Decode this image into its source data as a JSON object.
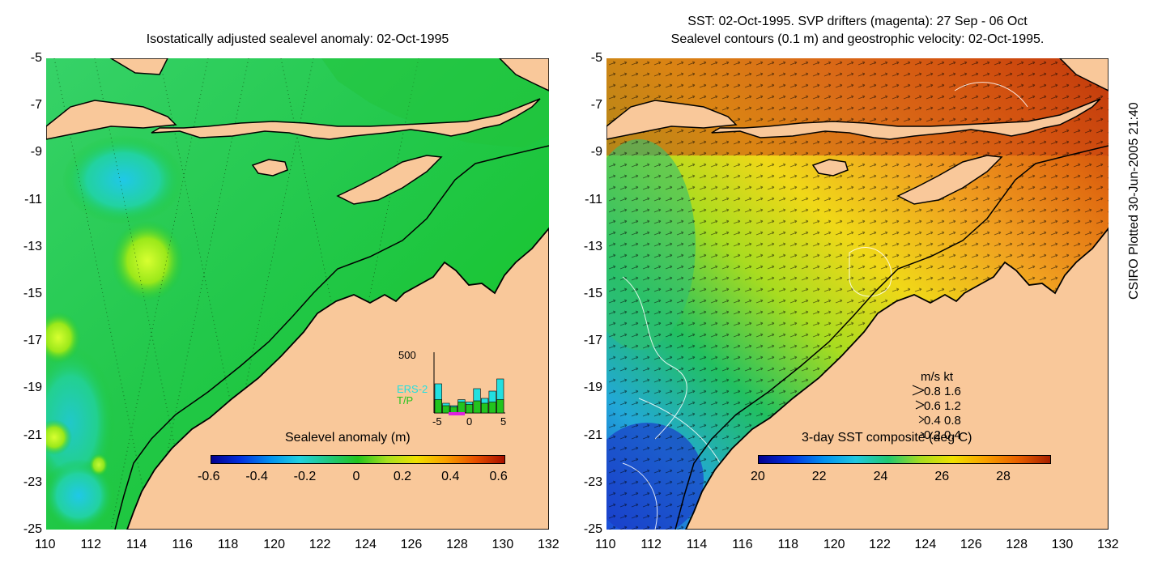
{
  "left": {
    "title": "Isostatically adjusted sealevel anomaly: 02-Oct-1995",
    "colorbar": {
      "label": "Sealevel anomaly (m)",
      "ticks": [
        "-0.6",
        "-0.4",
        "-0.2",
        "0",
        "0.2",
        "0.4",
        "0.6"
      ]
    },
    "inset": {
      "ymax_label": "500",
      "legend": [
        "ERS-2",
        "T/P"
      ],
      "legend_colors": [
        "#22e0e0",
        "#22c41e"
      ],
      "xticks": [
        "-5",
        "0",
        "5"
      ],
      "ers2_values": [
        240,
        80,
        60,
        110,
        90,
        200,
        120,
        180,
        280
      ],
      "tp_values": [
        110,
        60,
        50,
        90,
        70,
        100,
        80,
        90,
        110
      ]
    }
  },
  "right": {
    "title_line1": "SST: 02-Oct-1995. SVP drifters (magenta): 27 Sep - 06 Oct",
    "title_line2": "Sealevel contours (0.1 m) and geostrophic velocity: 02-Oct-1995.",
    "colorbar": {
      "label": "3-day SST composite (deg C)",
      "ticks": [
        "20",
        "22",
        "24",
        "26",
        "28"
      ]
    },
    "speed_legend": {
      "header": "m/s  kt",
      "rows": [
        "0.8  1.6",
        "0.6  1.2",
        "0.4  0.8",
        "0.2  0.4"
      ]
    }
  },
  "axes": {
    "y_ticks": [
      "-5",
      "-7",
      "-9",
      "-11",
      "-13",
      "-15",
      "-17",
      "-19",
      "-21",
      "-23",
      "-25"
    ],
    "x_ticks": [
      "110",
      "112",
      "114",
      "116",
      "118",
      "120",
      "122",
      "124",
      "126",
      "128",
      "130",
      "132"
    ]
  },
  "credit": "CSIRO Plotted 30-Jun-2005 21:40",
  "colors": {
    "land": "#f9c89a",
    "ocean_left": "#1ec82e",
    "ocean_right_warm": "#e07a14",
    "ocean_right_cool": "#2a6ae0"
  }
}
